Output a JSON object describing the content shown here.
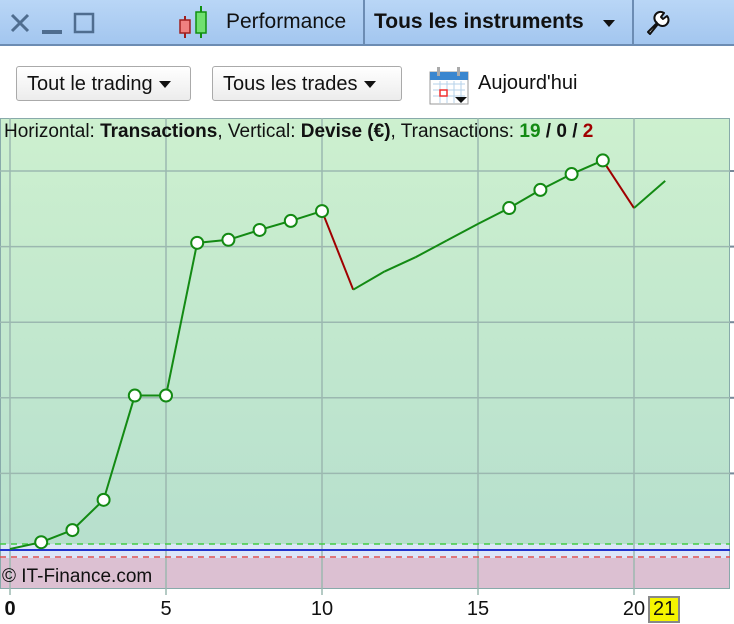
{
  "titlebar": {
    "tab_performance": "Performance",
    "tab_instruments": "Tous les instruments",
    "icons": [
      "close-icon",
      "minimize-icon",
      "maximize-icon",
      "candlestick-icon",
      "wrench-icon"
    ]
  },
  "toolbar": {
    "trading_filter": "Tout le trading",
    "trades_filter": "Tous les trades",
    "date_label": "Aujourd'hui"
  },
  "info": {
    "horizontal_label": "Horizontal: ",
    "horizontal_value": "Transactions",
    "vertical_label": ", Vertical: ",
    "vertical_value": "Devise (€)",
    "transactions_label": ", Transactions: ",
    "wins": "19",
    "sep1": " / ",
    "even": "0",
    "sep2": " / ",
    "losses": "2"
  },
  "watermark": "© IT-Finance.com",
  "chart_data": {
    "type": "line",
    "xlabel": "Transactions",
    "ylabel": "Devise (€)",
    "x_ticks": [
      "0",
      "5",
      "10",
      "15",
      "20"
    ],
    "current_x": "21",
    "xlim": [
      -0.3,
      23.2
    ],
    "x": [
      0,
      1,
      2,
      3,
      4,
      5,
      6,
      7,
      8,
      9,
      10,
      11,
      12,
      13,
      14,
      15,
      16,
      17,
      18,
      19,
      20,
      21
    ],
    "y": [
      0,
      0.09,
      0.25,
      0.65,
      2.03,
      2.03,
      4.05,
      4.09,
      4.22,
      4.34,
      4.47,
      3.43,
      3.67,
      3.86,
      4.08,
      4.3,
      4.51,
      4.75,
      4.96,
      5.14,
      4.51,
      4.87
    ],
    "markers": [
      1,
      2,
      3,
      4,
      5,
      6,
      7,
      8,
      9,
      10,
      16,
      17,
      18,
      19
    ],
    "grid": true,
    "colors": {
      "up": "#138a13",
      "down": "#a00000",
      "profit_zone": "#c9edd0",
      "loss_zone": "#dcc0d2",
      "zero_line": "#2233cc"
    }
  }
}
